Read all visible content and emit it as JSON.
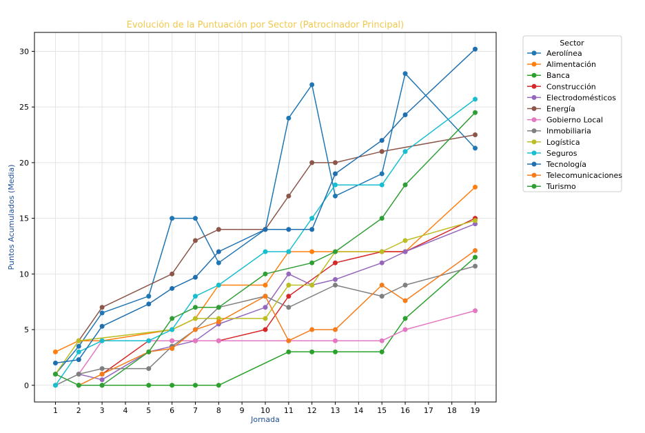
{
  "chart_data": {
    "type": "line",
    "title": "Evolución de la Puntuación por Sector (Patrocinador Principal)",
    "xlabel": "Jornada",
    "ylabel": "Puntos Acumulados (Media)",
    "x_ticks": [
      1,
      2,
      3,
      4,
      5,
      6,
      7,
      8,
      9,
      10,
      11,
      12,
      13,
      14,
      15,
      16,
      17,
      18,
      19
    ],
    "y_ticks": [
      0,
      5,
      10,
      15,
      20,
      25,
      30
    ],
    "xlim": [
      0.1,
      19.9
    ],
    "ylim": [
      -1.5,
      31.7
    ],
    "grid": true,
    "legend_title": "Sector",
    "legend_position": "outside-right",
    "series": [
      {
        "name": "Aerolínea",
        "color": "#1f77b4",
        "points": [
          [
            1,
            1
          ],
          [
            2,
            3.5
          ],
          [
            3,
            6.5
          ],
          [
            5,
            8
          ],
          [
            6,
            15
          ],
          [
            7,
            15
          ],
          [
            8,
            11
          ],
          [
            10,
            14
          ],
          [
            11,
            24
          ],
          [
            12,
            27
          ],
          [
            13,
            17
          ],
          [
            15,
            19
          ],
          [
            16,
            28
          ],
          [
            19,
            21.3
          ]
        ]
      },
      {
        "name": "Alimentación",
        "color": "#ff7f0e",
        "points": [
          [
            1,
            3
          ],
          [
            2,
            4
          ],
          [
            3,
            4
          ],
          [
            6,
            5
          ],
          [
            7,
            6
          ],
          [
            8,
            9
          ],
          [
            10,
            9
          ],
          [
            11,
            12
          ],
          [
            12,
            12
          ],
          [
            13,
            12
          ],
          [
            15,
            12
          ],
          [
            16,
            12
          ],
          [
            19,
            17.8
          ]
        ]
      },
      {
        "name": "Banca",
        "color": "#2ca02c",
        "points": [
          [
            2,
            0
          ],
          [
            3,
            0
          ],
          [
            5,
            0
          ],
          [
            6,
            0
          ],
          [
            7,
            0
          ],
          [
            8,
            0
          ],
          [
            11,
            3
          ],
          [
            12,
            3
          ],
          [
            13,
            3
          ],
          [
            15,
            3
          ],
          [
            16,
            6
          ],
          [
            19,
            11.5
          ]
        ]
      },
      {
        "name": "Construcción",
        "color": "#d62728",
        "points": [
          [
            3,
            1
          ],
          [
            5,
            4
          ],
          [
            6,
            4
          ],
          [
            7,
            4
          ],
          [
            8,
            4
          ],
          [
            10,
            5
          ],
          [
            11,
            8
          ],
          [
            13,
            11
          ],
          [
            15,
            12
          ],
          [
            16,
            12
          ],
          [
            19,
            15
          ]
        ]
      },
      {
        "name": "Electrodomésticos",
        "color": "#9467bd",
        "points": [
          [
            2,
            1
          ],
          [
            3,
            0.5
          ],
          [
            5,
            3
          ],
          [
            6,
            3.5
          ],
          [
            7,
            4
          ],
          [
            8,
            5.5
          ],
          [
            10,
            7
          ],
          [
            11,
            10
          ],
          [
            12,
            9
          ],
          [
            13,
            9.5
          ],
          [
            15,
            11
          ],
          [
            16,
            12
          ],
          [
            19,
            14.5
          ]
        ]
      },
      {
        "name": "Energía",
        "color": "#8c564b",
        "points": [
          [
            2,
            4
          ],
          [
            3,
            7
          ],
          [
            6,
            10
          ],
          [
            7,
            13
          ],
          [
            8,
            14
          ],
          [
            10,
            14
          ],
          [
            11,
            17
          ],
          [
            12,
            20
          ],
          [
            13,
            20
          ],
          [
            15,
            21
          ],
          [
            19,
            22.5
          ]
        ]
      },
      {
        "name": "Gobierno Local",
        "color": "#e377c2",
        "points": [
          [
            2,
            1
          ],
          [
            3,
            4
          ],
          [
            5,
            4
          ],
          [
            6,
            4
          ],
          [
            7,
            4
          ],
          [
            8,
            4
          ],
          [
            11,
            4
          ],
          [
            13,
            4
          ],
          [
            15,
            4
          ],
          [
            16,
            5
          ],
          [
            19,
            6.7
          ]
        ]
      },
      {
        "name": "Inmobiliaria",
        "color": "#7f7f7f",
        "points": [
          [
            1,
            0
          ],
          [
            2,
            1
          ],
          [
            3,
            1.5
          ],
          [
            5,
            1.5
          ],
          [
            6,
            3.5
          ],
          [
            7,
            5
          ],
          [
            8,
            7
          ],
          [
            10,
            8
          ],
          [
            11,
            7
          ],
          [
            13,
            9
          ],
          [
            15,
            8
          ],
          [
            16,
            9
          ],
          [
            19,
            10.7
          ]
        ]
      },
      {
        "name": "Logística",
        "color": "#bcbd22",
        "points": [
          [
            1,
            1
          ],
          [
            2,
            4
          ],
          [
            6,
            5
          ],
          [
            7,
            6
          ],
          [
            8,
            6
          ],
          [
            10,
            6
          ],
          [
            11,
            9
          ],
          [
            12,
            9
          ],
          [
            13,
            12
          ],
          [
            15,
            12
          ],
          [
            16,
            13
          ],
          [
            19,
            14.8
          ]
        ]
      },
      {
        "name": "Seguros",
        "color": "#17becf",
        "points": [
          [
            1,
            0
          ],
          [
            2,
            3
          ],
          [
            3,
            4
          ],
          [
            5,
            4
          ],
          [
            6,
            5
          ],
          [
            7,
            8
          ],
          [
            8,
            9
          ],
          [
            10,
            12
          ],
          [
            11,
            12
          ],
          [
            12,
            15
          ],
          [
            13,
            18
          ],
          [
            15,
            18
          ],
          [
            16,
            21
          ],
          [
            19,
            25.7
          ]
        ]
      },
      {
        "name": "Tecnología",
        "color": "#1f6fb0",
        "points": [
          [
            1,
            2
          ],
          [
            2,
            2.3
          ],
          [
            3,
            5.3
          ],
          [
            5,
            7.3
          ],
          [
            6,
            8.7
          ],
          [
            7,
            9.7
          ],
          [
            8,
            12
          ],
          [
            10,
            14
          ],
          [
            11,
            14
          ],
          [
            12,
            14
          ],
          [
            13,
            19
          ],
          [
            15,
            22
          ],
          [
            16,
            24.3
          ],
          [
            19,
            30.2
          ]
        ]
      },
      {
        "name": "Telecomunicaciones",
        "color": "#f57c1a",
        "points": [
          [
            2,
            0
          ],
          [
            3,
            1
          ],
          [
            5,
            3
          ],
          [
            6,
            3.3
          ],
          [
            7,
            5
          ],
          [
            8,
            5.7
          ],
          [
            10,
            8
          ],
          [
            11,
            4
          ],
          [
            12,
            5
          ],
          [
            13,
            5
          ],
          [
            15,
            9
          ],
          [
            16,
            7.6
          ],
          [
            19,
            12.1
          ]
        ]
      },
      {
        "name": "Turismo",
        "color": "#2e9e35",
        "points": [
          [
            1,
            1
          ],
          [
            2,
            0
          ],
          [
            3,
            0
          ],
          [
            5,
            3
          ],
          [
            6,
            6
          ],
          [
            7,
            7
          ],
          [
            8,
            7
          ],
          [
            10,
            10
          ],
          [
            12,
            11
          ],
          [
            13,
            12
          ],
          [
            15,
            15
          ],
          [
            16,
            18
          ],
          [
            19,
            24.5
          ]
        ]
      }
    ]
  }
}
